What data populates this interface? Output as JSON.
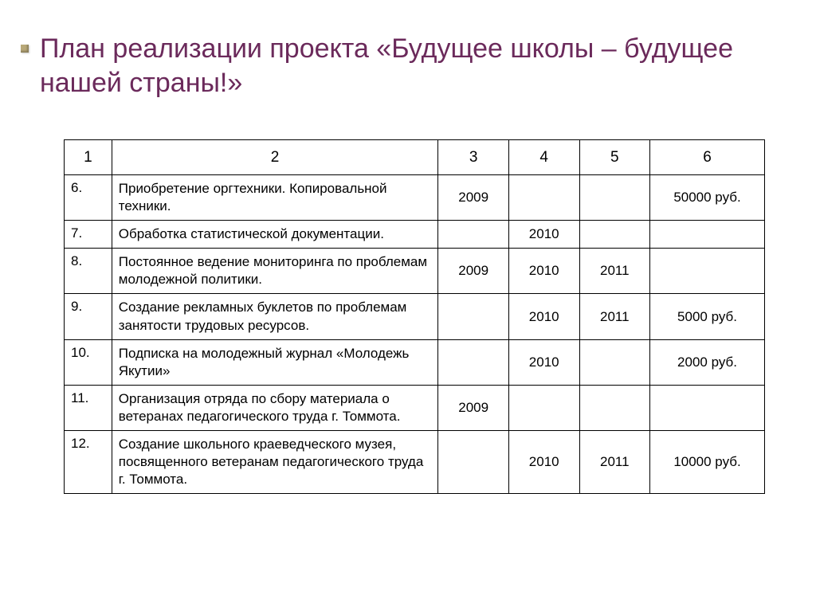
{
  "title": "План реализации проекта «Будущее школы – будущее нашей страны!»",
  "table": {
    "headers": [
      "1",
      "2",
      "3",
      "4",
      "5",
      "6"
    ],
    "rows": [
      {
        "num": "6.",
        "desc": "Приобретение оргтехники. Копировальной техники.",
        "y1": "2009",
        "y2": "",
        "y3": "",
        "cost": "50000 руб."
      },
      {
        "num": "7.",
        "desc": "Обработка статистической документации.",
        "y1": "",
        "y2": "2010",
        "y3": "",
        "cost": ""
      },
      {
        "num": "8.",
        "desc": "Постоянное ведение мониторинга  по проблемам молодежной политики.",
        "y1": "2009",
        "y2": "2010",
        "y3": "2011",
        "cost": ""
      },
      {
        "num": "9.",
        "desc": "Создание рекламных  буклетов по проблемам занятости трудовых ресурсов.",
        "y1": "",
        "y2": "2010",
        "y3": "2011",
        "cost": "5000 руб."
      },
      {
        "num": "10.",
        "desc": "Подписка на молодежный журнал  «Молодежь  Якутии»",
        "y1": "",
        "y2": "2010",
        "y3": "",
        "cost": "2000 руб."
      },
      {
        "num": "11.",
        "desc": "Организация отряда по сбору материала о ветеранах педагогического труда г. Томмота.",
        "y1": "2009",
        "y2": "",
        "y3": "",
        "cost": ""
      },
      {
        "num": "12.",
        "desc": "Создание школьного краеведческого музея, посвященного ветеранам педагогического труда г. Томмота.",
        "y1": "",
        "y2": "2010",
        "y3": "2011",
        "cost": "10000 руб."
      }
    ]
  }
}
